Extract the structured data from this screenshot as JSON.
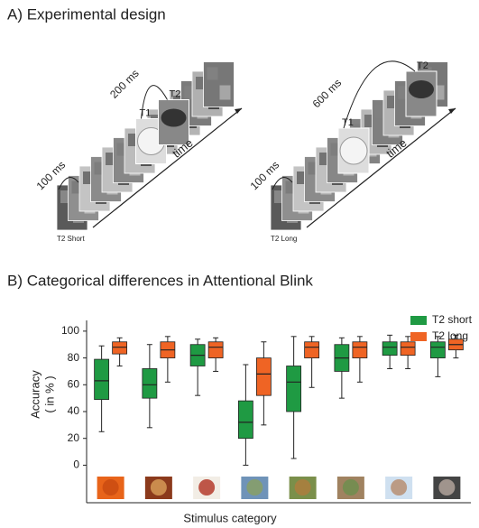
{
  "panel_a": {
    "title": "A) Experimental design",
    "short": {
      "isi": "100 ms",
      "lag": "200 ms",
      "t1": "T1",
      "t2": "T2",
      "time": "time",
      "caption": "T2 Short"
    },
    "long": {
      "isi": "100 ms",
      "lag": "600 ms",
      "t1": "T1",
      "t2": "T2",
      "time": "time",
      "caption": "T2 Long"
    }
  },
  "chart_data": {
    "type": "box",
    "title": "B) Categorical differences in Attentional Blink",
    "xlabel": "Stimulus category",
    "ylabel": [
      "Accuracy",
      "( in % )"
    ],
    "categories": [
      null,
      null,
      null,
      null,
      null,
      null,
      null,
      null
    ],
    "ylim": [
      -28,
      108
    ],
    "yticks": [
      0,
      20,
      40,
      60,
      80,
      100
    ],
    "legend": "top-right",
    "series": [
      {
        "name": "T2 short",
        "color": "#1f9a43",
        "values": [
          {
            "min": 25,
            "q1": 49,
            "median": 63,
            "q3": 79,
            "max": 89
          },
          {
            "min": 28,
            "q1": 50,
            "median": 60,
            "q3": 72,
            "max": 90
          },
          {
            "min": 52,
            "q1": 74,
            "median": 82,
            "q3": 90,
            "max": 94
          },
          {
            "min": 0,
            "q1": 20,
            "median": 32,
            "q3": 48,
            "max": 75
          },
          {
            "min": 5,
            "q1": 40,
            "median": 62,
            "q3": 74,
            "max": 96
          },
          {
            "min": 50,
            "q1": 70,
            "median": 80,
            "q3": 90,
            "max": 95
          },
          {
            "min": 72,
            "q1": 82,
            "median": 88,
            "q3": 92,
            "max": 97
          },
          {
            "min": 66,
            "q1": 80,
            "median": 88,
            "q3": 92,
            "max": 96
          }
        ]
      },
      {
        "name": "T2 long",
        "color": "#ef6424",
        "values": [
          {
            "min": 74,
            "q1": 83,
            "median": 88,
            "q3": 92,
            "max": 95
          },
          {
            "min": 62,
            "q1": 80,
            "median": 86,
            "q3": 92,
            "max": 96
          },
          {
            "min": 70,
            "q1": 80,
            "median": 88,
            "q3": 92,
            "max": 95
          },
          {
            "min": 30,
            "q1": 52,
            "median": 68,
            "q3": 80,
            "max": 92
          },
          {
            "min": 58,
            "q1": 80,
            "median": 88,
            "q3": 92,
            "max": 96
          },
          {
            "min": 62,
            "q1": 80,
            "median": 88,
            "q3": 92,
            "max": 96
          },
          {
            "min": 72,
            "q1": 82,
            "median": 88,
            "q3": 92,
            "max": 96
          },
          {
            "min": 80,
            "q1": 86,
            "median": 90,
            "q3": 94,
            "max": 97
          }
        ]
      }
    ]
  }
}
